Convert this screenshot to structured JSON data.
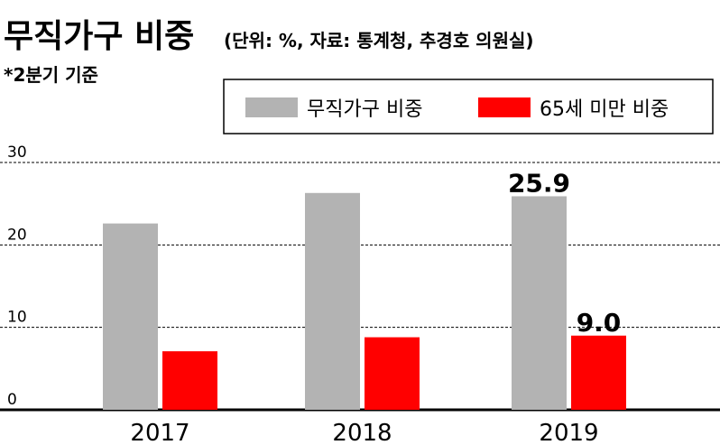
{
  "chart_data": {
    "type": "bar",
    "title": "무직가구 비중",
    "subtitle": "(단위: %, 자료: 통계청, 추경호 의원실)",
    "note": "*2분기 기준",
    "categories": [
      "2017",
      "2018",
      "2019"
    ],
    "series": [
      {
        "name": "무직가구 비중",
        "color": "#b3b3b3",
        "values": [
          22.6,
          26.3,
          25.9
        ]
      },
      {
        "name": "65세 미만 비중",
        "color": "#ff0000",
        "values": [
          7.1,
          8.8,
          9.0
        ]
      }
    ],
    "data_labels": [
      {
        "series": 0,
        "index": 2,
        "text": "25.9"
      },
      {
        "series": 1,
        "index": 2,
        "text": "9.0"
      }
    ],
    "yticks": [
      "0",
      "10",
      "20",
      "30"
    ],
    "ytick_values": [
      0,
      10,
      20,
      30
    ],
    "ylim": [
      0,
      30
    ],
    "grid": true,
    "legend": "top-right",
    "xlabel": "",
    "ylabel": ""
  }
}
